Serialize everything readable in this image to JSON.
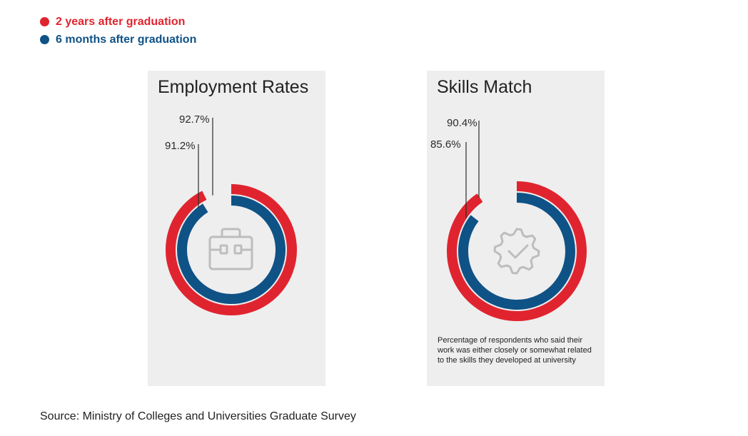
{
  "legend": {
    "items": [
      {
        "label": "2 years after graduation",
        "color": "#e0242f"
      },
      {
        "label": "6 months after graduation",
        "color": "#0f5286"
      }
    ]
  },
  "chart_data": [
    {
      "type": "pie",
      "title": "Employment Rates",
      "series": [
        {
          "name": "2 years after graduation",
          "value": 92.7,
          "label": "92.7%"
        },
        {
          "name": "6 months after graduation",
          "value": 91.2,
          "label": "91.2%"
        }
      ],
      "icon": "briefcase-icon"
    },
    {
      "type": "pie",
      "title": "Skills Match",
      "series": [
        {
          "name": "2 years after graduation",
          "value": 90.4,
          "label": "90.4%"
        },
        {
          "name": "6 months after graduation",
          "value": 85.6,
          "label": "85.6%"
        }
      ],
      "icon": "gear-check-icon",
      "note": "Percentage of respondents who said their work was either closely or somewhat related to the skills they developed at university"
    }
  ],
  "source": "Source: Ministry of Colleges and Universities Graduate Survey",
  "colors": {
    "outer": "#e0242f",
    "inner": "#0f5286",
    "panel_bg": "#eeeeef",
    "icon": "#bdbdbd"
  }
}
